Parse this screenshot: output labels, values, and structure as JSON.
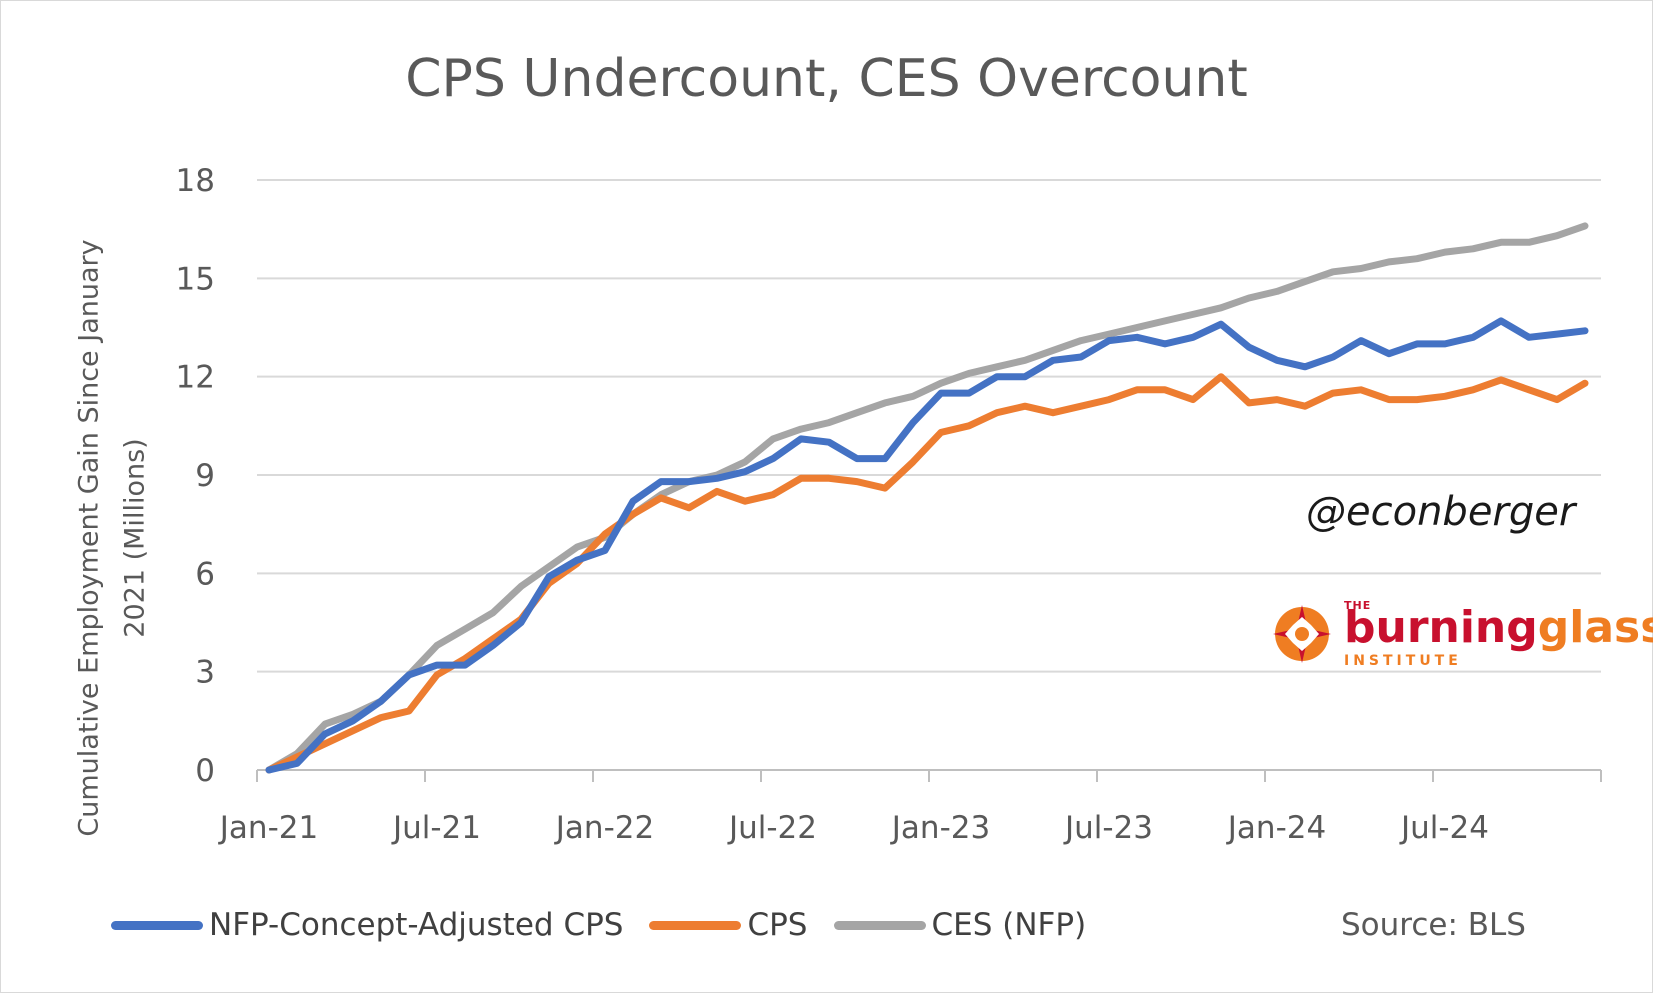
{
  "chart_data": {
    "type": "line",
    "title": "CPS Undercount, CES Overcount",
    "ylabel_lines": [
      "Cumulative Employment Gain Since January",
      "2021 (Millions)"
    ],
    "ylim": [
      0,
      18
    ],
    "yticks": [
      0,
      3,
      6,
      9,
      12,
      15,
      18
    ],
    "xtick_labels": [
      {
        "label": "Jan-21",
        "index": 0
      },
      {
        "label": "Jul-21",
        "index": 6
      },
      {
        "label": "Jan-22",
        "index": 12
      },
      {
        "label": "Jul-22",
        "index": 18
      },
      {
        "label": "Jan-23",
        "index": 24
      },
      {
        "label": "Jul-23",
        "index": 30
      },
      {
        "label": "Jan-24",
        "index": 36
      },
      {
        "label": "Jul-24",
        "index": 42
      }
    ],
    "x_count": 48,
    "grid": true,
    "legend_position": "bottom",
    "series": [
      {
        "name": "NFP-Concept-Adjusted CPS",
        "color": "#4472c4",
        "values": [
          0,
          0.2,
          1.1,
          1.5,
          2.1,
          2.9,
          3.2,
          3.2,
          3.8,
          4.5,
          5.9,
          6.4,
          6.7,
          8.2,
          8.8,
          8.8,
          8.9,
          9.1,
          9.5,
          10.1,
          10.0,
          9.5,
          9.5,
          10.6,
          11.5,
          11.5,
          12.0,
          12.0,
          12.5,
          12.6,
          13.1,
          13.2,
          13.0,
          13.2,
          13.6,
          12.9,
          12.5,
          12.3,
          12.6,
          13.1,
          12.7,
          13.0,
          13.0,
          13.2,
          13.7,
          13.2,
          13.3,
          13.4
        ]
      },
      {
        "name": "CPS",
        "color": "#ed7d31",
        "values": [
          0,
          0.4,
          0.8,
          1.2,
          1.6,
          1.8,
          2.9,
          3.4,
          4.0,
          4.6,
          5.7,
          6.3,
          7.2,
          7.8,
          8.3,
          8.0,
          8.5,
          8.2,
          8.4,
          8.9,
          8.9,
          8.8,
          8.6,
          9.4,
          10.3,
          10.5,
          10.9,
          11.1,
          10.9,
          11.1,
          11.3,
          11.6,
          11.6,
          11.3,
          12.0,
          11.2,
          11.3,
          11.1,
          11.5,
          11.6,
          11.3,
          11.3,
          11.4,
          11.6,
          11.9,
          11.6,
          11.3,
          11.8
        ]
      },
      {
        "name": "CES (NFP)",
        "color": "#a5a5a5",
        "values": [
          0,
          0.5,
          1.4,
          1.7,
          2.1,
          2.9,
          3.8,
          4.3,
          4.8,
          5.6,
          6.2,
          6.8,
          7.1,
          7.8,
          8.4,
          8.8,
          9.0,
          9.4,
          10.1,
          10.4,
          10.6,
          10.9,
          11.2,
          11.4,
          11.8,
          12.1,
          12.3,
          12.5,
          12.8,
          13.1,
          13.3,
          13.5,
          13.7,
          13.9,
          14.1,
          14.4,
          14.6,
          14.9,
          15.2,
          15.3,
          15.5,
          15.6,
          15.8,
          15.9,
          16.1,
          16.1,
          16.3,
          16.6
        ]
      }
    ]
  },
  "annotations": {
    "watermark": "@econberger",
    "source": "Source: BLS",
    "logo": {
      "the": "THE",
      "word_a": "burning",
      "word_b": "glass",
      "institute": "INSTITUTE"
    }
  }
}
